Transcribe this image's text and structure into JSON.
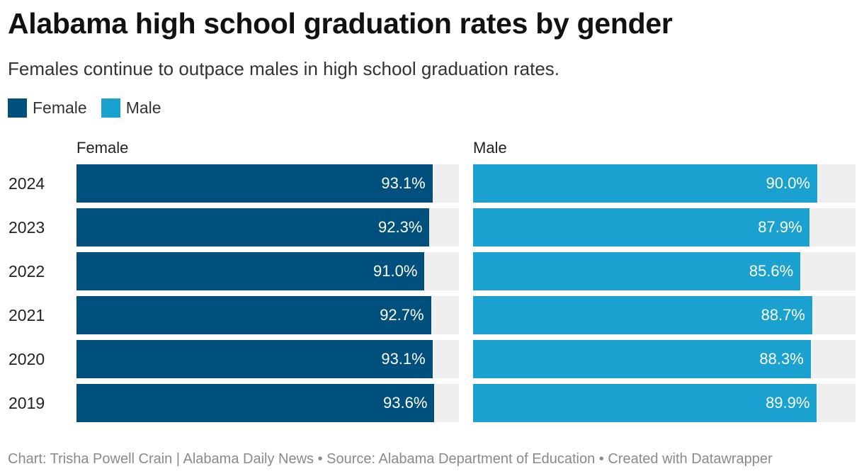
{
  "chart_data": {
    "type": "bar",
    "orientation": "horizontal",
    "layout": "small-multiples",
    "title": "Alabama high school graduation rates by gender",
    "subtitle": "Females continue to outpace males in high school graduation rates.",
    "categories": [
      "2024",
      "2023",
      "2022",
      "2021",
      "2020",
      "2019"
    ],
    "xlim": [
      0,
      100
    ],
    "value_suffix": "%",
    "series": [
      {
        "name": "Female",
        "color": "#00507d",
        "values": [
          93.1,
          92.3,
          91.0,
          92.7,
          93.1,
          93.6
        ],
        "labels": [
          "93.1%",
          "92.3%",
          "91.0%",
          "92.7%",
          "93.1%",
          "93.6%"
        ]
      },
      {
        "name": "Male",
        "color": "#1aa1d0",
        "values": [
          90.0,
          87.9,
          85.6,
          88.7,
          88.3,
          89.9
        ],
        "labels": [
          "90.0%",
          "87.9%",
          "85.6%",
          "88.7%",
          "88.3%",
          "89.9%"
        ]
      }
    ],
    "legend": [
      "Female",
      "Male"
    ],
    "legend_position": "top-left",
    "track_color": "#efefef"
  },
  "footer": "Chart: Trisha Powell Crain | Alabama Daily News • Source: Alabama Department of Education • Created with Datawrapper"
}
